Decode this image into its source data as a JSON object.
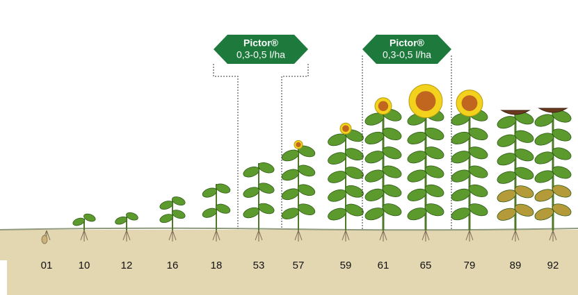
{
  "applications": [
    {
      "product": "Pictor®",
      "rate": "0,3-0,5 l/ha"
    },
    {
      "product": "Pictor®",
      "rate": "0,3-0,5 l/ha"
    }
  ],
  "stages": [
    "01",
    "10",
    "12",
    "16",
    "18",
    "53",
    "57",
    "59",
    "61",
    "65",
    "79",
    "89",
    "92"
  ]
}
